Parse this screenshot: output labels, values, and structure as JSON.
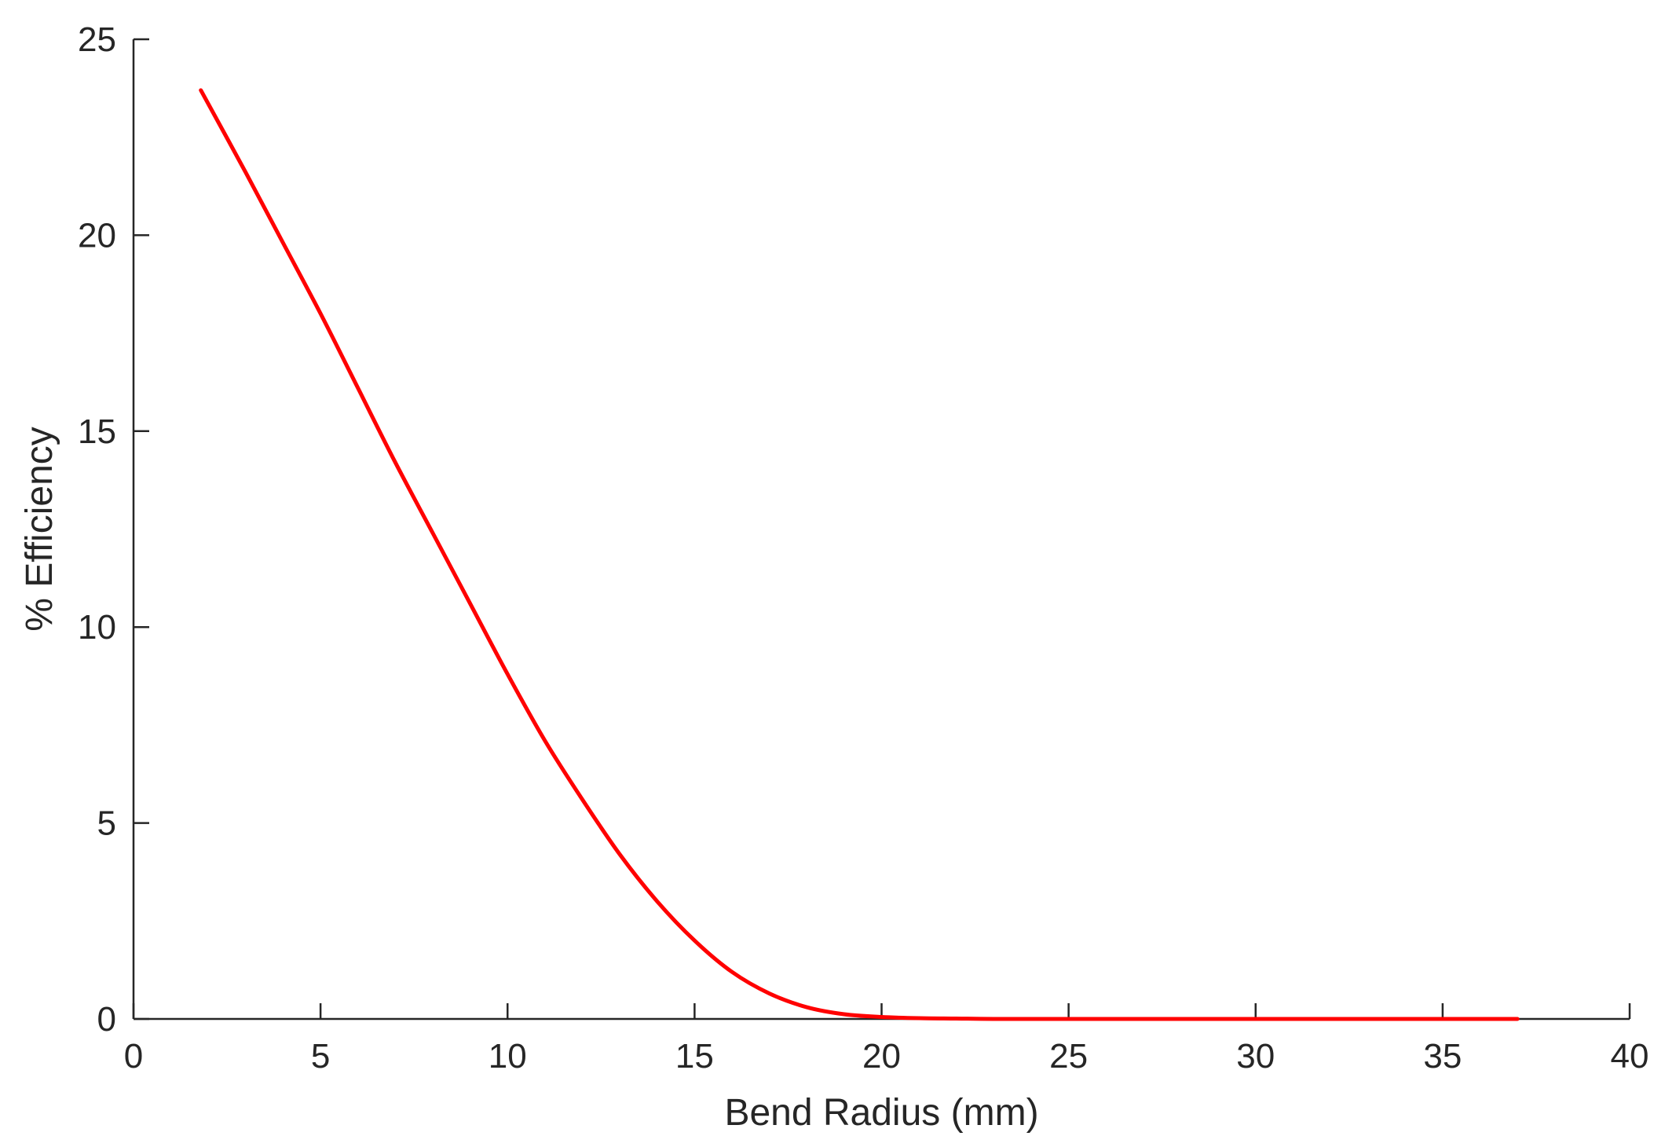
{
  "chart_data": {
    "type": "line",
    "title": "",
    "xlabel": "Bend Radius (mm)",
    "ylabel": "% Efficiency",
    "xlim": [
      0,
      40
    ],
    "ylim": [
      0,
      25
    ],
    "xticks": [
      0,
      5,
      10,
      15,
      20,
      25,
      30,
      35,
      40
    ],
    "yticks": [
      0,
      5,
      10,
      15,
      20,
      25
    ],
    "xtick_labels": [
      "0",
      "5",
      "10",
      "15",
      "20",
      "25",
      "30",
      "35",
      "40"
    ],
    "ytick_labels": [
      "0",
      "5",
      "10",
      "15",
      "20",
      "25"
    ],
    "grid": false,
    "series": [
      {
        "color": "#ff0000",
        "x": [
          1.8,
          3,
          4,
          5,
          6,
          7,
          8,
          9,
          10,
          11,
          12,
          13,
          14,
          15,
          16,
          17,
          18,
          19,
          20,
          21,
          22,
          23,
          25,
          27,
          30,
          33,
          35,
          37
        ],
        "y": [
          23.7,
          21.6,
          19.8,
          18.0,
          16.1,
          14.2,
          12.4,
          10.6,
          8.8,
          7.1,
          5.6,
          4.2,
          3.0,
          2.0,
          1.2,
          0.65,
          0.3,
          0.12,
          0.05,
          0.02,
          0.01,
          0.0,
          0.0,
          0.0,
          0.0,
          0.0,
          0.0,
          0.0
        ]
      }
    ]
  }
}
